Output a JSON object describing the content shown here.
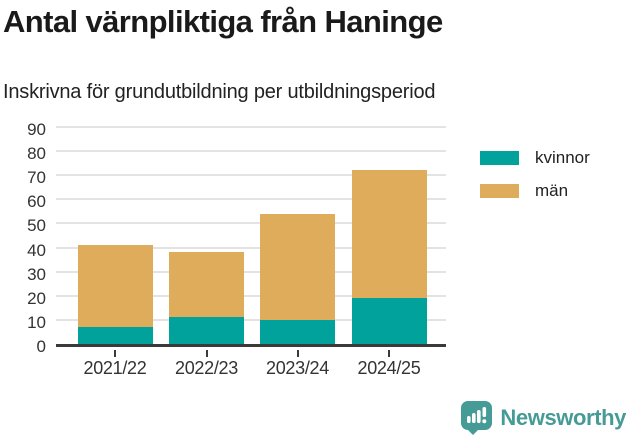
{
  "title": "Antal värnpliktiga från Haninge",
  "subtitle": "Inskrivna för grundutbildning per utbildningsperiod",
  "chart_data": {
    "type": "bar",
    "stacked": true,
    "title": "Antal värnpliktiga från Haninge",
    "subtitle": "Inskrivna för grundutbildning per utbildningsperiod",
    "categories": [
      "2021/22",
      "2022/23",
      "2023/24",
      "2024/25"
    ],
    "series": [
      {
        "name": "kvinnor",
        "color": "#00a29b",
        "values": [
          7,
          11,
          10,
          19
        ]
      },
      {
        "name": "män",
        "color": "#deac5b",
        "values": [
          34,
          27,
          44,
          53
        ]
      }
    ],
    "stack_totals": [
      41,
      38,
      54,
      72
    ],
    "xlabel": "",
    "ylabel": "",
    "ylim": [
      0,
      90
    ],
    "yticks": [
      0,
      10,
      20,
      30,
      40,
      50,
      60,
      70,
      80,
      90
    ],
    "grid": true,
    "gridline_color": "#e3e3e3",
    "axis_color": "#3a3a3a",
    "legend_position": "right"
  },
  "logo": {
    "text": "Newsworthy",
    "color": "#469b96",
    "icon": "newsworthy-bar-chart-speech-bubble-icon"
  }
}
